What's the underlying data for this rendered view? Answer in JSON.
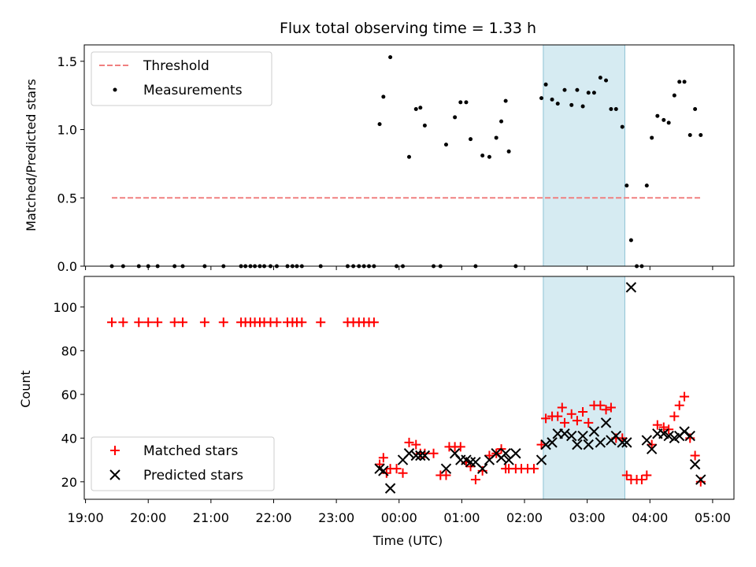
{
  "chart_data": [
    {
      "type": "scatter",
      "title": "Flux total observing time = 1.33 h",
      "xlabel": "",
      "ylabel": "Matched/Predicted stars",
      "xlim": [
        18.98,
        29.34
      ],
      "ylim": [
        0,
        1.62
      ],
      "yticks": [
        0.0,
        0.5,
        1.0,
        1.5
      ],
      "ytick_labels": [
        "0.0",
        "0.5",
        "1.0",
        "1.5"
      ],
      "highlight_span": [
        26.3,
        27.6
      ],
      "threshold": {
        "name": "Threshold",
        "value": 0.5,
        "x_range": [
          19.42,
          28.82
        ],
        "color": "#f08080"
      },
      "legend": [
        "Threshold",
        "Measurements"
      ],
      "series": [
        {
          "name": "Measurements",
          "color": "#000000",
          "x": [
            19.42,
            19.6,
            19.85,
            20.0,
            20.15,
            20.42,
            20.55,
            20.9,
            21.2,
            21.48,
            21.55,
            21.63,
            21.7,
            21.78,
            21.85,
            21.95,
            22.05,
            22.22,
            22.3,
            22.37,
            22.45,
            22.75,
            23.18,
            23.27,
            23.36,
            23.44,
            23.52,
            23.6,
            23.69,
            23.75,
            23.86,
            23.96,
            24.06,
            24.16,
            24.27,
            24.34,
            24.41,
            24.55,
            24.66,
            24.75,
            24.89,
            24.98,
            25.07,
            25.14,
            25.22,
            25.33,
            25.44,
            25.55,
            25.63,
            25.7,
            25.75,
            25.86,
            26.27,
            26.34,
            26.44,
            26.53,
            26.64,
            26.75,
            26.84,
            26.93,
            27.02,
            27.11,
            27.21,
            27.3,
            27.38,
            27.46,
            27.56,
            27.63,
            27.7,
            27.79,
            27.87,
            27.95,
            28.03,
            28.12,
            28.22,
            28.3,
            28.39,
            28.47,
            28.55,
            28.64,
            28.72,
            28.81
          ],
          "y": [
            0,
            0,
            0,
            0,
            0,
            0,
            0,
            0,
            0,
            0,
            0,
            0,
            0,
            0,
            0,
            0,
            0,
            0,
            0,
            0,
            0,
            0,
            0,
            0,
            0,
            0,
            0,
            0,
            1.04,
            1.24,
            1.53,
            0,
            0,
            0.8,
            1.15,
            1.16,
            1.03,
            0,
            0,
            0.89,
            1.09,
            1.2,
            1.2,
            0.93,
            0,
            0.81,
            0.8,
            0.94,
            1.06,
            1.21,
            0.84,
            0,
            1.23,
            1.33,
            1.22,
            1.19,
            1.29,
            1.18,
            1.29,
            1.17,
            1.27,
            1.27,
            1.38,
            1.36,
            1.15,
            1.15,
            1.02,
            0.59,
            0.19,
            0,
            0,
            0.59,
            0.94,
            1.1,
            1.07,
            1.05,
            1.25,
            1.35,
            1.35,
            0.96,
            1.15,
            0.96
          ]
        }
      ]
    },
    {
      "type": "scatter",
      "title": "",
      "xlabel": "Time (UTC)",
      "ylabel": "Count",
      "xlim": [
        18.98,
        29.34
      ],
      "ylim": [
        12,
        114
      ],
      "yticks": [
        20,
        40,
        60,
        80,
        100
      ],
      "ytick_labels": [
        "20",
        "40",
        "60",
        "80",
        "100"
      ],
      "xticks": [
        19,
        20,
        21,
        22,
        23,
        24,
        25,
        26,
        27,
        28,
        29
      ],
      "xtick_labels": [
        "19:00",
        "20:00",
        "21:00",
        "22:00",
        "23:00",
        "00:00",
        "01:00",
        "02:00",
        "03:00",
        "04:00",
        "05:00"
      ],
      "highlight_span": [
        26.3,
        27.6
      ],
      "legend": [
        "Matched stars",
        "Predicted stars"
      ],
      "series": [
        {
          "name": "Matched stars",
          "marker": "+",
          "color": "#ff0000",
          "x": [
            19.42,
            19.6,
            19.85,
            20.0,
            20.15,
            20.42,
            20.55,
            20.9,
            21.2,
            21.48,
            21.55,
            21.63,
            21.7,
            21.78,
            21.85,
            21.95,
            22.05,
            22.22,
            22.3,
            22.37,
            22.45,
            22.75,
            23.18,
            23.27,
            23.36,
            23.44,
            23.52,
            23.6,
            23.69,
            23.75,
            23.8,
            23.86,
            23.96,
            24.06,
            24.16,
            24.27,
            24.34,
            24.41,
            24.55,
            24.66,
            24.75,
            24.8,
            24.89,
            24.98,
            25.07,
            25.14,
            25.22,
            25.33,
            25.44,
            25.55,
            25.63,
            25.7,
            25.75,
            25.86,
            25.95,
            26.05,
            26.15,
            26.27,
            26.34,
            26.44,
            26.53,
            26.6,
            26.64,
            26.75,
            26.84,
            26.93,
            27.02,
            27.11,
            27.21,
            27.3,
            27.38,
            27.46,
            27.56,
            27.63,
            27.7,
            27.79,
            27.87,
            27.95,
            28.03,
            28.12,
            28.22,
            28.3,
            28.39,
            28.47,
            28.55,
            28.64,
            28.72,
            28.81
          ],
          "y": [
            93,
            93,
            93,
            93,
            93,
            93,
            93,
            93,
            93,
            93,
            93,
            93,
            93,
            93,
            93,
            93,
            93,
            93,
            93,
            93,
            93,
            93,
            93,
            93,
            93,
            93,
            93,
            93,
            28,
            31,
            24,
            26,
            26,
            24,
            38,
            37,
            33,
            33,
            33,
            23,
            23,
            36,
            36,
            36,
            29,
            27,
            21,
            25,
            32,
            33,
            35,
            26,
            26,
            26,
            26,
            26,
            26,
            37,
            49,
            50,
            50,
            54,
            47,
            51,
            48,
            52,
            47,
            55,
            55,
            53,
            54,
            40,
            40,
            23,
            21,
            21,
            21,
            23,
            37,
            46,
            45,
            44,
            50,
            55,
            59,
            40,
            32,
            20
          ]
        },
        {
          "name": "Predicted stars",
          "marker": "x",
          "color": "#000000",
          "x": [
            23.69,
            23.75,
            23.86,
            24.06,
            24.16,
            24.27,
            24.34,
            24.41,
            24.75,
            24.89,
            24.98,
            25.07,
            25.14,
            25.22,
            25.33,
            25.44,
            25.55,
            25.63,
            25.7,
            25.75,
            25.86,
            26.27,
            26.34,
            26.44,
            26.53,
            26.64,
            26.75,
            26.84,
            26.93,
            27.02,
            27.11,
            27.21,
            27.3,
            27.38,
            27.46,
            27.56,
            27.63,
            27.7,
            27.95,
            28.03,
            28.12,
            28.22,
            28.3,
            28.39,
            28.47,
            28.55,
            28.64,
            28.72,
            28.81
          ],
          "y": [
            26,
            25,
            17,
            30,
            33,
            32,
            32,
            32,
            26,
            33,
            30,
            30,
            29,
            29,
            26,
            30,
            33,
            31,
            33,
            30,
            33,
            30,
            37,
            38,
            42,
            42,
            41,
            37,
            41,
            37,
            43,
            38,
            47,
            39,
            41,
            38,
            38,
            109,
            39,
            35,
            42,
            42,
            41,
            40,
            41,
            43,
            41,
            28,
            21
          ]
        }
      ]
    }
  ]
}
